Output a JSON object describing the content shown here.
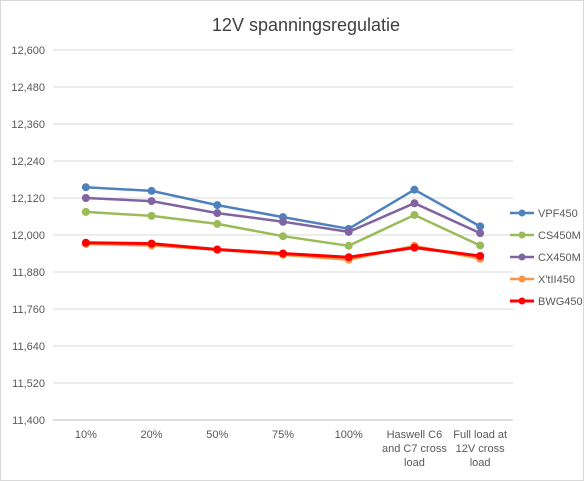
{
  "chart_data": {
    "type": "line",
    "title": "12V spanningsregulatie",
    "xlabel": "",
    "ylabel": "",
    "categories": [
      "10%",
      "20%",
      "50%",
      "75%",
      "100%",
      [
        "Haswell C6",
        "and C7 cross",
        "load"
      ],
      [
        "Full load at",
        "12V cross",
        "load"
      ]
    ],
    "ylim": [
      11.4,
      12.6
    ],
    "yticks": [
      11.4,
      11.52,
      11.64,
      11.76,
      11.88,
      12.0,
      12.12,
      12.24,
      12.36,
      12.48,
      12.6
    ],
    "ytick_labels": [
      "11,400",
      "11,520",
      "11,640",
      "11,760",
      "11,880",
      "12,000",
      "12,120",
      "12,240",
      "12,360",
      "12,480",
      "12,600"
    ],
    "grid": true,
    "legend_position": "right",
    "series": [
      {
        "name": "VPF450",
        "color": "#4f81bd",
        "values": [
          12.155,
          12.143,
          12.097,
          12.058,
          12.02,
          12.147,
          12.028
        ]
      },
      {
        "name": "CS450M",
        "color": "#9bbb59",
        "values": [
          12.075,
          12.062,
          12.036,
          11.996,
          11.965,
          12.065,
          11.966
        ]
      },
      {
        "name": "CX450M",
        "color": "#8064a2",
        "values": [
          12.12,
          12.11,
          12.071,
          12.043,
          12.01,
          12.103,
          12.006
        ]
      },
      {
        "name": "X'tII450",
        "color": "#f79646",
        "values": [
          11.971,
          11.966,
          11.952,
          11.936,
          11.92,
          11.965,
          11.923
        ]
      },
      {
        "name": "BWG450",
        "color": "#ff0000",
        "values": [
          11.975,
          11.972,
          11.953,
          11.94,
          11.928,
          11.959,
          11.932
        ]
      }
    ]
  }
}
